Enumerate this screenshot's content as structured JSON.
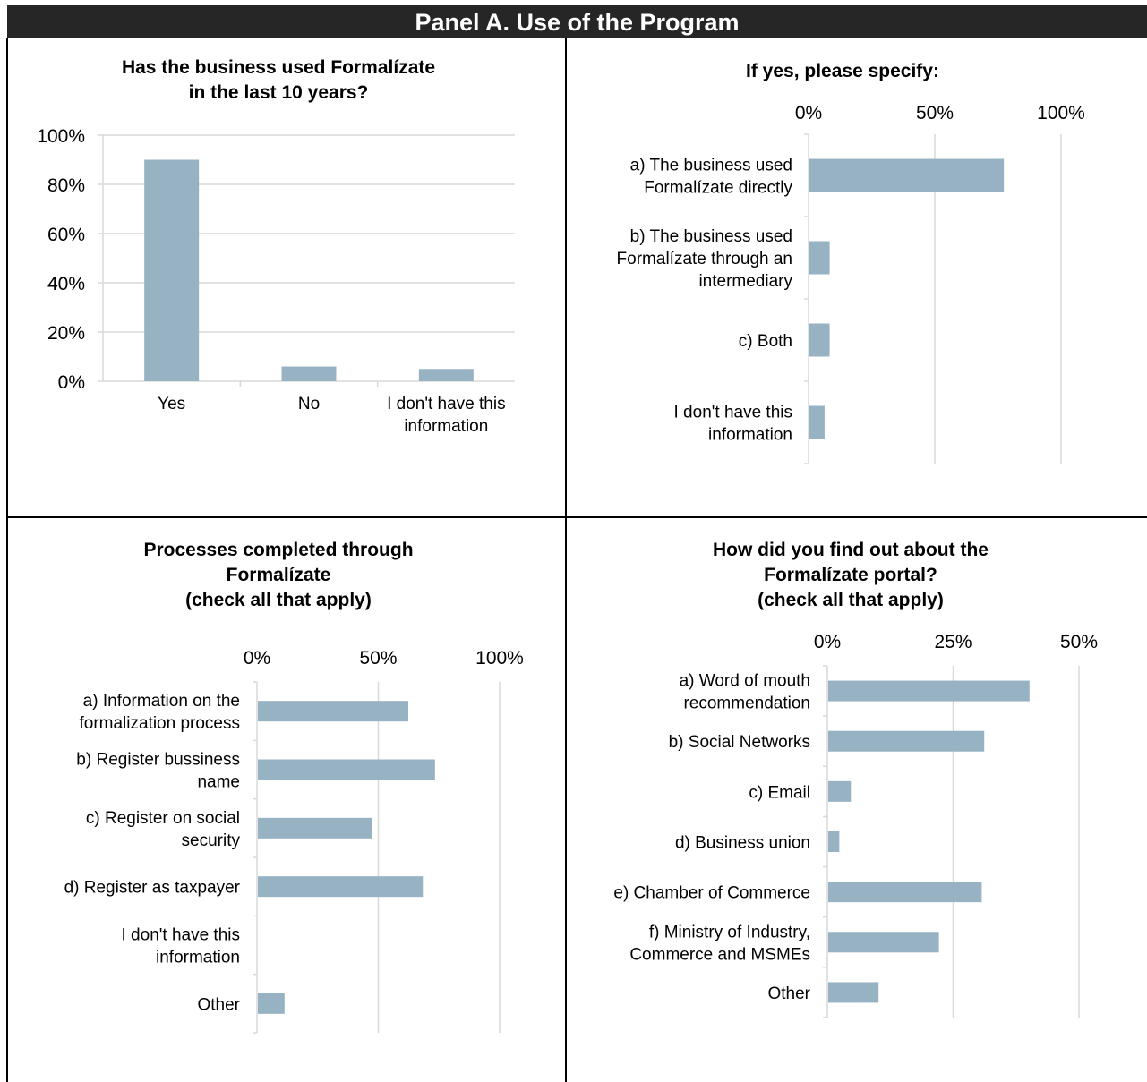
{
  "panel": {
    "title": "Panel A. Use of the Program"
  },
  "colors": {
    "bar": "#97b3c3",
    "grid": "#d9d9d9",
    "header_bg": "#262626"
  },
  "chart_data": [
    {
      "id": "used",
      "type": "bar",
      "orientation": "vertical",
      "title": [
        "Has the business used Formalízate",
        "in the last 10 years?"
      ],
      "categories": [
        [
          "Yes"
        ],
        [
          "No"
        ],
        [
          "I don't have this",
          "information"
        ]
      ],
      "values": [
        90,
        6,
        5
      ],
      "ylim": [
        0,
        100
      ],
      "ticks": [
        0,
        20,
        40,
        60,
        80,
        100
      ],
      "tick_labels": [
        "0%",
        "20%",
        "40%",
        "60%",
        "80%",
        "100%"
      ],
      "grid": true
    },
    {
      "id": "specify",
      "type": "bar",
      "orientation": "horizontal",
      "title": [
        "If yes, please specify:"
      ],
      "categories": [
        [
          "a) The business used",
          "Formalízate directly"
        ],
        [
          "b) The business used",
          "Formalízate through an",
          "intermediary"
        ],
        [
          "c) Both"
        ],
        [
          "I don't have this",
          "information"
        ]
      ],
      "values": [
        77,
        8,
        8,
        6
      ],
      "xlim": [
        0,
        100
      ],
      "ticks": [
        0,
        50,
        100
      ],
      "tick_labels": [
        "0%",
        "50%",
        "100%"
      ],
      "grid": true
    },
    {
      "id": "processes",
      "type": "bar",
      "orientation": "horizontal",
      "title": [
        "Processes completed through",
        "Formalízate",
        "(check all that apply)"
      ],
      "categories": [
        [
          "a) Information on the",
          "formalization process"
        ],
        [
          "b) Register bussiness",
          "name"
        ],
        [
          "c) Register on social",
          "security"
        ],
        [
          "d) Register as taxpayer"
        ],
        [
          "I don't have this",
          "information"
        ],
        [
          "Other"
        ]
      ],
      "values": [
        62,
        73,
        47,
        68,
        0,
        11
      ],
      "xlim": [
        0,
        100
      ],
      "ticks": [
        0,
        50,
        100
      ],
      "tick_labels": [
        "0%",
        "50%",
        "100%"
      ],
      "grid": true
    },
    {
      "id": "findout",
      "type": "bar",
      "orientation": "horizontal",
      "title": [
        "How did you find out about the",
        "Formalízate portal?",
        "(check all that apply)"
      ],
      "categories": [
        [
          "a) Word of mouth",
          "recommendation"
        ],
        [
          "b) Social Networks"
        ],
        [
          "c) Email"
        ],
        [
          "d) Business union"
        ],
        [
          "e) Chamber of Commerce"
        ],
        [
          "f) Ministry of Industry,",
          "Commerce and MSMEs"
        ],
        [
          "Other"
        ]
      ],
      "values": [
        40,
        31,
        4.5,
        2.2,
        30.5,
        22,
        10
      ],
      "xlim": [
        0,
        50
      ],
      "ticks": [
        0,
        25,
        50
      ],
      "tick_labels": [
        "0%",
        "25%",
        "50%"
      ],
      "grid": true
    }
  ]
}
